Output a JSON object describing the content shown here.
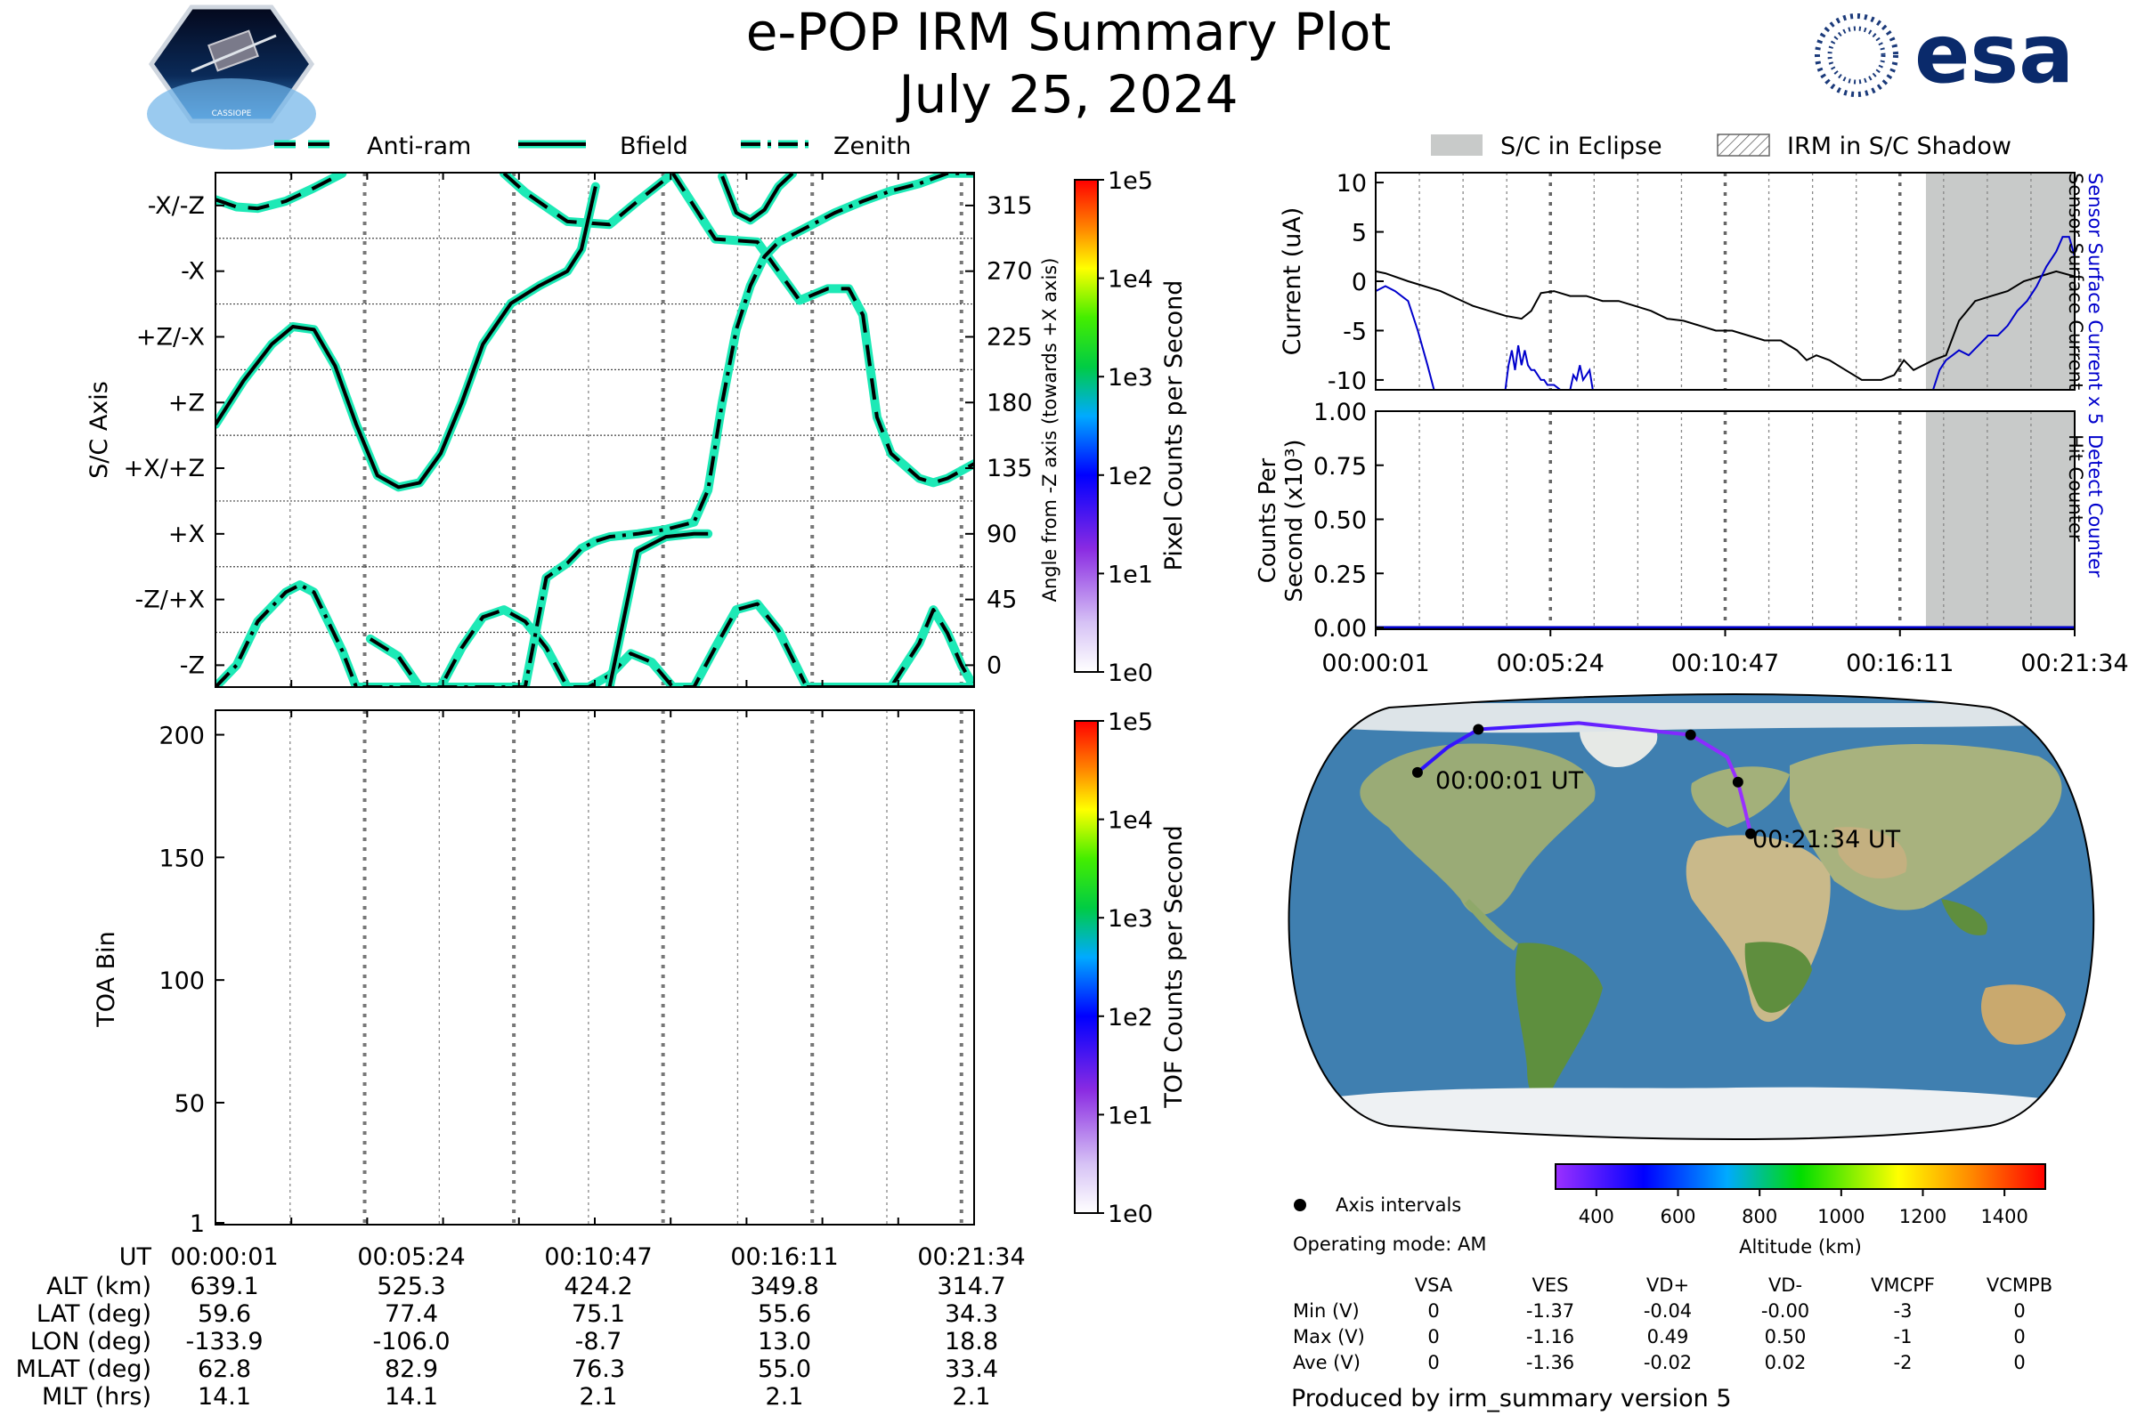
{
  "header": {
    "title": "e-POP IRM Summary Plot",
    "date": "July 25, 2024",
    "left_logo_text": "CASSIOPE",
    "right_logo_text": "esa"
  },
  "colors": {
    "trace": "#1de9b6",
    "black": "#000000",
    "blue": "#0000cc",
    "eclipse": "#c8cac9",
    "ocean": "#3f7fb0",
    "land": "#9aab76"
  },
  "chart_data": [
    {
      "id": "attitude",
      "type": "line",
      "legend": [
        "Anti-ram",
        "Bfield",
        "Zenith"
      ],
      "ylabel": "S/C Axis",
      "ylabel_right": "Angle from -Z axis (towards +X axis)",
      "ylim": [
        -15,
        337.5
      ],
      "yticks_left": [
        {
          "v": 315,
          "label": "-X/-Z"
        },
        {
          "v": 270,
          "label": "-X"
        },
        {
          "v": 225,
          "label": "+Z/-X"
        },
        {
          "v": 180,
          "label": "+Z"
        },
        {
          "v": 135,
          "label": "+X/+Z"
        },
        {
          "v": 90,
          "label": "+X"
        },
        {
          "v": 45,
          "label": "-Z/+X"
        },
        {
          "v": 0,
          "label": "-Z"
        }
      ],
      "yticks_right": [
        315,
        270,
        225,
        180,
        135,
        90,
        45,
        0
      ],
      "colorbar_label": "Pixel Counts per Second",
      "colorbar_ticks": [
        "1e5",
        "1e4",
        "1e3",
        "1e2",
        "1e1",
        "1e0"
      ],
      "series": [
        {
          "name": "Anti-ram",
          "x": [
            0,
            0.15,
            0.3,
            0.5,
            0.7,
            0.9,
            1.1,
            1.3,
            1.45,
            1.6,
            1.75,
            1.9,
            2.05,
            2.2,
            2.35,
            2.5,
            2.65,
            2.8,
            2.95,
            3.1,
            3.25,
            3.4,
            3.55,
            3.7,
            3.85,
            4.0,
            4.2,
            4.4,
            4.6,
            4.8,
            5.0,
            5.1,
            5.2,
            5.3,
            5.39
          ],
          "y": [
            319,
            314,
            313,
            318,
            327,
            337,
            18,
            6,
            -15,
            -15,
            12,
            33,
            38,
            30,
            12,
            -15,
            -15,
            -7,
            8,
            2,
            -15,
            -15,
            12,
            38,
            42,
            24,
            -15,
            -15,
            -15,
            -15,
            15,
            38,
            22,
            0,
            -15
          ]
        },
        {
          "name": "Anti-ram (upper)",
          "x": [
            2.05,
            2.2,
            2.5,
            2.8,
            3.0,
            3.25,
            3.55,
            3.85,
            4.15,
            4.35,
            4.5,
            4.6,
            4.7,
            4.8,
            5.0,
            5.1,
            5.2,
            5.39
          ],
          "y": [
            337,
            324,
            304,
            302,
            318,
            337,
            292,
            290,
            250,
            258,
            258,
            240,
            170,
            145,
            128,
            125,
            128,
            138
          ]
        },
        {
          "name": "Bfield",
          "x": [
            0,
            0.2,
            0.4,
            0.55,
            0.7,
            0.85,
            1.0,
            1.15,
            1.3,
            1.45,
            1.6,
            1.75,
            1.9,
            2.1,
            2.3,
            2.5,
            2.6,
            2.7,
            2.8,
            3.0,
            3.2,
            3.4,
            3.5,
            3.6,
            3.7,
            3.8,
            3.9,
            4.0,
            4.1,
            4.2,
            4.4,
            4.6,
            4.8,
            5.0,
            5.1,
            5.2,
            5.3,
            5.39
          ],
          "y": [
            165,
            195,
            220,
            232,
            230,
            205,
            165,
            130,
            122,
            125,
            145,
            180,
            220,
            248,
            260,
            270,
            285,
            328,
            -15,
            78,
            88,
            90,
            90,
            335,
            310,
            305,
            312,
            328,
            337,
            -15,
            -15,
            -15,
            -15,
            -15,
            -15,
            -15,
            -15,
            -15
          ]
        },
        {
          "name": "Zenith",
          "x": [
            0,
            0.15,
            0.3,
            0.5,
            0.6,
            0.7,
            0.8,
            0.9,
            1.0,
            1.1,
            1.2,
            1.3,
            1.4,
            1.5,
            1.6,
            1.75,
            1.9,
            2.05,
            2.2,
            2.35,
            2.5,
            2.6,
            2.7,
            2.8,
            3.0,
            3.2,
            3.4,
            3.5,
            3.6,
            3.7,
            3.8,
            3.9,
            4.0,
            4.2,
            4.4,
            4.6,
            4.8,
            5.0,
            5.2,
            5.39
          ],
          "y": [
            -15,
            0,
            30,
            50,
            55,
            50,
            30,
            10,
            -15,
            -15,
            -15,
            -15,
            -15,
            -15,
            -15,
            -15,
            -15,
            -15,
            -15,
            60,
            70,
            80,
            85,
            88,
            90,
            93,
            98,
            120,
            180,
            230,
            260,
            280,
            290,
            300,
            310,
            318,
            325,
            330,
            337,
            337
          ]
        }
      ]
    },
    {
      "id": "toa",
      "type": "heatmap",
      "ylabel": "TOA Bin",
      "yticks": [
        200,
        150,
        100,
        50,
        1
      ],
      "ylim": [
        1,
        210
      ],
      "colorbar_label": "TOF Counts per Second",
      "colorbar_ticks": [
        "1e5",
        "1e4",
        "1e3",
        "1e2",
        "1e1",
        "1e0"
      ]
    },
    {
      "id": "current",
      "type": "line",
      "legend": [
        "S/C in Eclipse",
        "IRM in S/C Shadow"
      ],
      "ylabel": "Current (uA)",
      "ylabel_right_blue": "Sensor Surface Current x 5",
      "ylabel_right_black": "Sensor Surface Current",
      "ylim": [
        -11,
        11
      ],
      "yticks": [
        10,
        5,
        0,
        -5,
        -10
      ],
      "eclipse_x": [
        16.98,
        21.57
      ],
      "series": [
        {
          "name": "Sensor Surface Current",
          "x": [
            0,
            0.3,
            1,
            2,
            3,
            4,
            4.5,
            4.8,
            5.1,
            5.5,
            6,
            6.5,
            7,
            7.5,
            8,
            8.5,
            9,
            9.5,
            10,
            10.5,
            11,
            11.5,
            12,
            12.5,
            13,
            13.3,
            13.6,
            14,
            14.5,
            15,
            15.3,
            15.6,
            16,
            16.3,
            16.6,
            16.9,
            17.2,
            17.6,
            18,
            18.5,
            19,
            19.5,
            20,
            20.5,
            21,
            21.57
          ],
          "y": [
            1,
            0.8,
            0,
            -1,
            -2.5,
            -3.5,
            -3.8,
            -3,
            -1.2,
            -1,
            -1.5,
            -1.5,
            -2,
            -2,
            -2.5,
            -3,
            -3.8,
            -4,
            -4.5,
            -5,
            -5,
            -5.5,
            -6,
            -6,
            -7,
            -8,
            -7.5,
            -8,
            -9,
            -10,
            -10,
            -10,
            -9.5,
            -8,
            -9,
            -8.5,
            -8,
            -7.5,
            -4,
            -2,
            -1.5,
            -1,
            0,
            0.5,
            1,
            0.5
          ]
        },
        {
          "name": "Sensor Surface Current x 5",
          "x": [
            0,
            0.3,
            0.6,
            1,
            1.3,
            1.6,
            1.8,
            4.0,
            4.1,
            4.2,
            4.3,
            4.4,
            4.5,
            4.6,
            4.7,
            4.8,
            4.9,
            5.0,
            5.1,
            5.2,
            5.3,
            5.5,
            5.7,
            5.9,
            6.0,
            6.1,
            6.2,
            6.3,
            6.4,
            6.5,
            6.6,
            6.7,
            17.2,
            17.4,
            17.6,
            17.8,
            18,
            18.3,
            18.6,
            18.9,
            19.2,
            19.5,
            19.8,
            20.1,
            20.4,
            20.7,
            21,
            21.2,
            21.4,
            21.57
          ],
          "y": [
            -1,
            -0.5,
            -1,
            -2,
            -5,
            -8.5,
            -11,
            -11,
            -8.5,
            -7,
            -9,
            -6.5,
            -8.5,
            -7,
            -8.5,
            -9,
            -9,
            -9.5,
            -10,
            -10,
            -10.5,
            -10.5,
            -11,
            -11,
            -11,
            -9.5,
            -10,
            -8.5,
            -10,
            -9.5,
            -9,
            -11,
            -11,
            -9,
            -8,
            -7.5,
            -7,
            -7.5,
            -6.5,
            -5.5,
            -5.5,
            -4.5,
            -3,
            -2,
            -0.5,
            1.5,
            3,
            4.5,
            4.5,
            2.5
          ]
        }
      ]
    },
    {
      "id": "counts",
      "type": "line",
      "ylabel_line1": "Counts Per",
      "ylabel_line2": "Second (x10³)",
      "ylabel_right_blue": "Detect Counter",
      "ylabel_right_black": "Hit Counter",
      "ylim": [
        0,
        1
      ],
      "yticks": [
        "1.00",
        "0.75",
        "0.50",
        "0.25",
        "0.00"
      ],
      "eclipse_x": [
        16.98,
        21.57
      ],
      "x_ticklabels": [
        "00:00:01",
        "00:05:24",
        "00:10:47",
        "00:16:11",
        "00:21:34"
      ]
    },
    {
      "id": "map",
      "type": "scatter",
      "track_labels": [
        "00:00:01 UT",
        "00:21:34 UT"
      ],
      "track": [
        {
          "lon": -133.9,
          "lat": 59.6
        },
        {
          "lon": -120,
          "lat": 70
        },
        {
          "lon": -106.0,
          "lat": 77.4
        },
        {
          "lon": -60,
          "lat": 80
        },
        {
          "lon": -8.7,
          "lat": 75.1
        },
        {
          "lon": 8,
          "lat": 66
        },
        {
          "lon": 13.0,
          "lat": 55.6
        },
        {
          "lon": 16,
          "lat": 45
        },
        {
          "lon": 18.8,
          "lat": 34.3
        }
      ],
      "axis_points": [
        {
          "lon": -133.9,
          "lat": 59.6
        },
        {
          "lon": -106.0,
          "lat": 77.4
        },
        {
          "lon": -8.7,
          "lat": 75.1
        },
        {
          "lon": 13.0,
          "lat": 55.6
        },
        {
          "lon": 18.8,
          "lat": 34.3
        }
      ],
      "altitude_colorbar": {
        "label": "Altitude (km)",
        "ticks": [
          "400",
          "600",
          "800",
          "1000",
          "1200",
          "1400"
        ],
        "range": [
          300,
          1500
        ]
      }
    }
  ],
  "ephemeris": {
    "row_labels": [
      "UT",
      "ALT (km)",
      "LAT (deg)",
      "LON (deg)",
      "MLAT (deg)",
      "MLT (hrs)"
    ],
    "columns": [
      [
        "00:00:01",
        "639.1",
        "59.6",
        "-133.9",
        "62.8",
        "14.1"
      ],
      [
        "00:05:24",
        "525.3",
        "77.4",
        "-106.0",
        "82.9",
        "14.1"
      ],
      [
        "00:10:47",
        "424.2",
        "75.1",
        "-8.7",
        "76.3",
        "2.1"
      ],
      [
        "00:16:11",
        "349.8",
        "55.6",
        "13.0",
        "55.0",
        "2.1"
      ],
      [
        "00:21:34",
        "314.7",
        "34.3",
        "18.8",
        "33.4",
        "2.1"
      ]
    ]
  },
  "info": {
    "axis_intervals": "Axis intervals",
    "operating_mode": "Operating mode: AM",
    "voltage_headers": [
      "VSA",
      "VES",
      "VD+",
      "VD-",
      "VMCPF",
      "VCMPB"
    ],
    "voltage_rows": [
      {
        "label": "Min (V)",
        "values": [
          "0",
          "-1.37",
          "-0.04",
          "-0.00",
          "-3",
          "0"
        ]
      },
      {
        "label": "Max (V)",
        "values": [
          "0",
          "-1.16",
          "0.49",
          "0.50",
          "-1",
          "0"
        ]
      },
      {
        "label": "Ave (V)",
        "values": [
          "0",
          "-1.36",
          "-0.02",
          "0.02",
          "-2",
          "0"
        ]
      }
    ],
    "produced_by": "Produced by irm_summary version 5"
  }
}
